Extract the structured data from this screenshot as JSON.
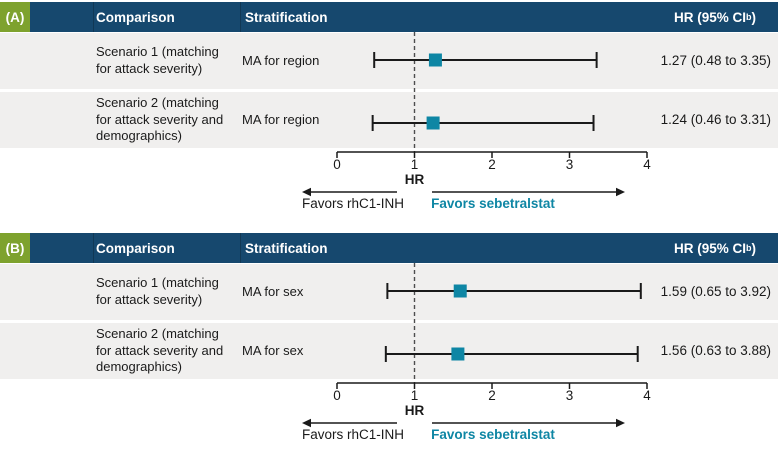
{
  "colors": {
    "navy": "#16486e",
    "green": "#7ea22e",
    "teal": "#0e86a4",
    "row_bg": "#f0efee",
    "line": "#1a1a1a",
    "dash": "#4d4d4d"
  },
  "chart_data": [
    {
      "type": "forest",
      "panel_label": "(A)",
      "header": {
        "comparison": "Comparison",
        "stratification": "Stratification",
        "hr_prefix": "HR (95% CI",
        "hr_sup": "b",
        "hr_suffix": ")"
      },
      "rows": [
        {
          "comparison": "Scenario 1 (matching for attack severity)",
          "stratification": "MA for region",
          "hr": 1.27,
          "ci_low": 0.48,
          "ci_high": 3.35,
          "hr_text": "1.27 (0.48 to 3.35)"
        },
        {
          "comparison": "Scenario 2 (matching for attack severity and demographics)",
          "stratification": "MA for region",
          "hr": 1.24,
          "ci_low": 0.46,
          "ci_high": 3.31,
          "hr_text": "1.24 (0.46 to 3.31)"
        }
      ],
      "axis": {
        "min": 0,
        "max": 4,
        "ticks": [
          0,
          1,
          2,
          3,
          4
        ],
        "reference": 1,
        "label": "HR"
      },
      "favors_left": "Favors rhC1-INH",
      "favors_right": "Favors sebetralstat"
    },
    {
      "type": "forest",
      "panel_label": "(B)",
      "header": {
        "comparison": "Comparison",
        "stratification": "Stratification",
        "hr_prefix": "HR (95% CI",
        "hr_sup": "b",
        "hr_suffix": ")"
      },
      "rows": [
        {
          "comparison": "Scenario 1 (matching for attack severity)",
          "stratification": "MA for sex",
          "hr": 1.59,
          "ci_low": 0.65,
          "ci_high": 3.92,
          "hr_text": "1.59 (0.65 to 3.92)"
        },
        {
          "comparison": "Scenario 2 (matching for attack severity and demographics)",
          "stratification": "MA for sex",
          "hr": 1.56,
          "ci_low": 0.63,
          "ci_high": 3.88,
          "hr_text": "1.56 (0.63 to 3.88)"
        }
      ],
      "axis": {
        "min": 0,
        "max": 4,
        "ticks": [
          0,
          1,
          2,
          3,
          4
        ],
        "reference": 1,
        "label": "HR"
      },
      "favors_left": "Favors rhC1-INH",
      "favors_right": "Favors sebetralstat"
    }
  ]
}
